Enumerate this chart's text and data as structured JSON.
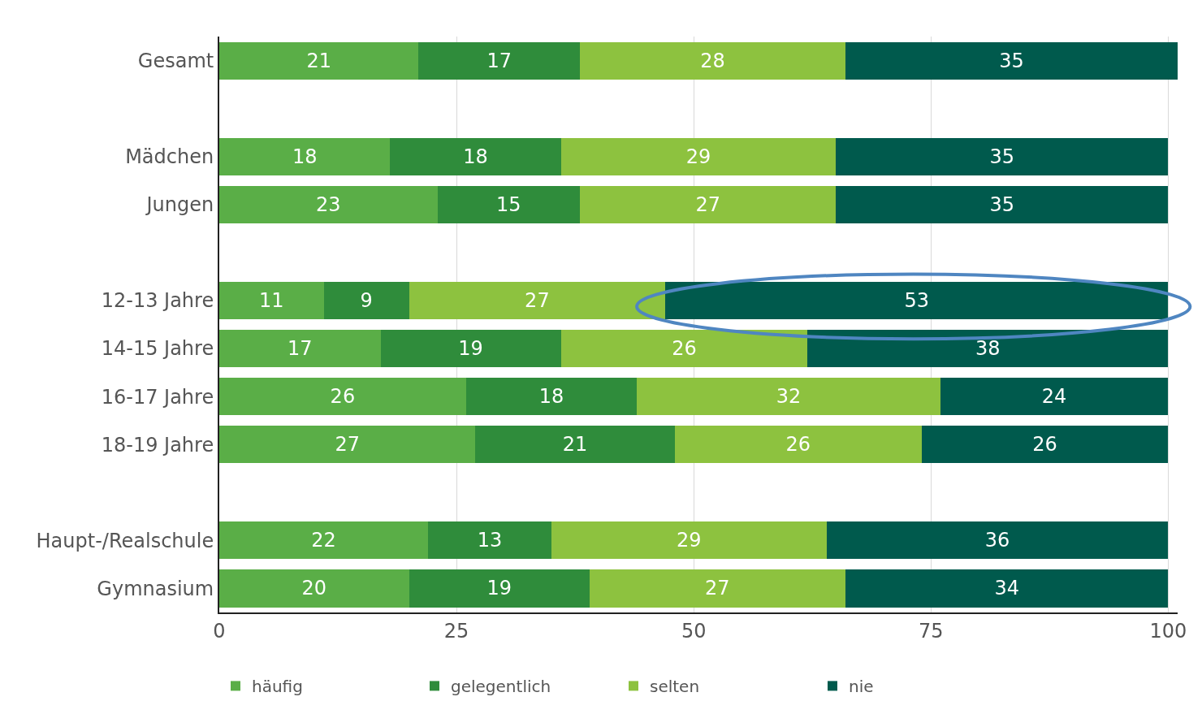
{
  "chart_data": {
    "type": "bar",
    "orientation": "horizontal",
    "stacked": true,
    "categories": [
      "Gesamt",
      null,
      "Mädchen",
      "Jungen",
      null,
      "12-13 Jahre",
      "14-15 Jahre",
      "16-17 Jahre",
      "18-19 Jahre",
      null,
      "Haupt-/Realschule",
      "Gymnasium"
    ],
    "series": [
      {
        "name": "häufig",
        "color": "#5aae47",
        "values": [
          21,
          null,
          18,
          23,
          null,
          11,
          17,
          26,
          27,
          null,
          22,
          20
        ]
      },
      {
        "name": "gelegentlich",
        "color": "#2f8c3b",
        "values": [
          17,
          null,
          18,
          15,
          null,
          9,
          19,
          18,
          21,
          null,
          13,
          19
        ]
      },
      {
        "name": "selten",
        "color": "#8dc23f",
        "values": [
          28,
          null,
          29,
          27,
          null,
          27,
          26,
          32,
          26,
          null,
          29,
          27
        ]
      },
      {
        "name": "nie",
        "color": "#005a4d",
        "values": [
          35,
          null,
          35,
          35,
          null,
          53,
          38,
          24,
          26,
          null,
          36,
          34
        ]
      }
    ],
    "xlim": [
      0,
      101
    ],
    "xticks": [
      0,
      25,
      50,
      75,
      100
    ],
    "grid": "x",
    "legend": "bottom left",
    "data_labels": true
  }
}
